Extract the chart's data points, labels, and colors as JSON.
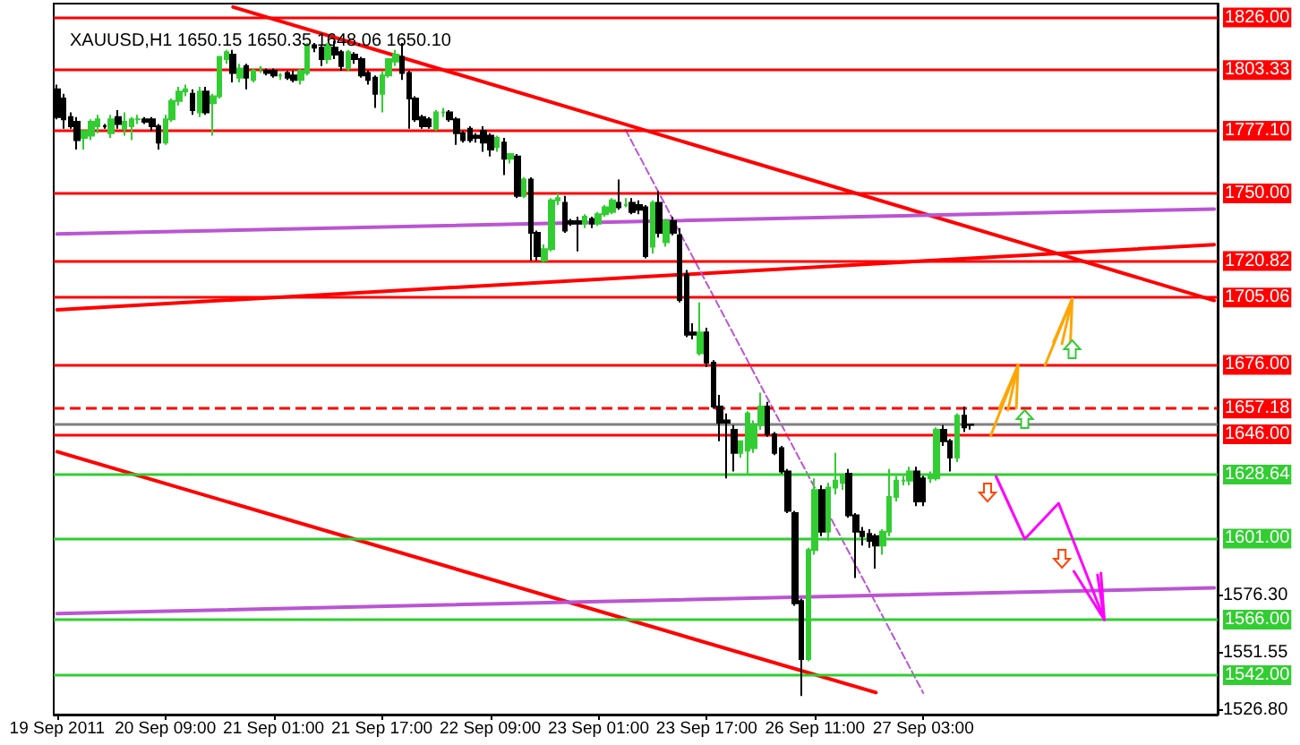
{
  "chart_data": {
    "type": "candlestick",
    "title": "XAUUSD,H1 1650.15 1650.35 1648.06 1650.10",
    "categories": [
      "19 Sep 2011",
      null,
      null,
      null,
      null,
      null,
      null,
      null,
      null,
      null,
      null,
      null,
      null,
      null,
      null,
      null,
      "20 Sep 09:00",
      null,
      null,
      null,
      null,
      null,
      null,
      null,
      null,
      null,
      null,
      null,
      null,
      null,
      null,
      null,
      "21 Sep 01:00",
      null,
      null,
      null,
      null,
      null,
      null,
      null,
      null,
      null,
      null,
      null,
      null,
      null,
      null,
      null,
      "21 Sep 17:00",
      null,
      null,
      null,
      null,
      null,
      null,
      null,
      null,
      null,
      null,
      null,
      null,
      null,
      null,
      null,
      "22 Sep 09:00",
      null,
      null,
      null,
      null,
      null,
      null,
      null,
      null,
      null,
      null,
      null,
      null,
      null,
      null,
      null,
      "23 Sep 01:00",
      null,
      null,
      null,
      null,
      null,
      null,
      null,
      null,
      null,
      null,
      null,
      null,
      null,
      null,
      null,
      "23 Sep 17:00",
      null,
      null,
      null,
      null,
      null,
      null,
      null,
      null,
      null,
      null,
      null,
      null,
      null,
      null,
      null,
      "26 Sep 11:00",
      null,
      null,
      null,
      null,
      null,
      null,
      null,
      null,
      null,
      null,
      null,
      null,
      null,
      null,
      null,
      "27 Sep 03:00",
      null,
      null,
      null,
      null,
      null,
      null,
      null,
      null,
      null,
      null,
      null,
      null,
      null,
      null,
      null,
      null,
      null,
      null,
      null,
      null,
      null,
      null,
      null,
      null,
      null,
      null,
      null,
      null,
      null,
      null,
      null,
      null,
      null,
      null,
      null,
      null,
      null,
      null,
      null,
      null,
      null,
      null,
      null
    ],
    "ohlc": [
      [
        1795,
        1797,
        1782,
        1783
      ],
      [
        1791,
        1793,
        1778,
        1782
      ],
      [
        1783,
        1785,
        1778,
        1779
      ],
      [
        1781,
        1783,
        1769,
        1773
      ],
      [
        1774,
        1777,
        1769,
        1777
      ],
      [
        1775,
        1782,
        1773,
        1781
      ],
      [
        1779,
        1784,
        1776,
        1782
      ],
      [
        1779,
        1780,
        1778,
        1779
      ],
      [
        1776,
        1784,
        1774,
        1782
      ],
      [
        1783,
        1786,
        1778,
        1780
      ],
      [
        1778,
        1785,
        1775,
        1781
      ],
      [
        1779,
        1783,
        1773,
        1782
      ],
      [
        1782,
        1784,
        1780,
        1782
      ],
      [
        1782,
        1783,
        1780,
        1781
      ],
      [
        1782,
        1783,
        1777,
        1779
      ],
      [
        1779,
        1780,
        1769,
        1772
      ],
      [
        1772,
        1784,
        1771,
        1782
      ],
      [
        1782,
        1791,
        1781,
        1790
      ],
      [
        1790,
        1796,
        1788,
        1794
      ],
      [
        1794,
        1797,
        1792,
        1795
      ],
      [
        1793,
        1795,
        1784,
        1786
      ],
      [
        1785,
        1796,
        1783,
        1794
      ],
      [
        1794,
        1796,
        1784,
        1785
      ],
      [
        1789,
        1793,
        1775,
        1792
      ],
      [
        1792,
        1809,
        1791,
        1809
      ],
      [
        1808,
        1812,
        1806,
        1811
      ],
      [
        1810,
        1812,
        1798,
        1802
      ],
      [
        1800,
        1806,
        1798,
        1804
      ],
      [
        1805,
        1806,
        1795,
        1800
      ],
      [
        1799,
        1804,
        1798,
        1803
      ],
      [
        1804,
        1805,
        1802,
        1804
      ],
      [
        1803,
        1804,
        1801,
        1802
      ],
      [
        1803,
        1804,
        1800,
        1801
      ],
      [
        1801,
        1802,
        1799,
        1801
      ],
      [
        1802,
        1803,
        1799,
        1800
      ],
      [
        1801,
        1803,
        1798,
        1799
      ],
      [
        1799,
        1804,
        1797,
        1803
      ],
      [
        1802,
        1815,
        1801,
        1814
      ],
      [
        1814,
        1815,
        1811,
        1813
      ],
      [
        1813,
        1814,
        1805,
        1808
      ],
      [
        1808,
        1815,
        1806,
        1814
      ],
      [
        1813,
        1816,
        1808,
        1810
      ],
      [
        1811,
        1812,
        1803,
        1805
      ],
      [
        1804,
        1812,
        1803,
        1811
      ],
      [
        1810,
        1811,
        1806,
        1808
      ],
      [
        1808,
        1809,
        1800,
        1801
      ],
      [
        1802,
        1803,
        1797,
        1799
      ],
      [
        1800,
        1801,
        1787,
        1793
      ],
      [
        1793,
        1803,
        1785,
        1801
      ],
      [
        1801,
        1808,
        1800,
        1808
      ],
      [
        1807,
        1812,
        1805,
        1810
      ],
      [
        1809,
        1815,
        1799,
        1802
      ],
      [
        1802,
        1803,
        1778,
        1791
      ],
      [
        1791,
        1792,
        1781,
        1782
      ],
      [
        1783,
        1784,
        1778,
        1779
      ],
      [
        1782,
        1783,
        1778,
        1779
      ],
      [
        1778,
        1786,
        1777,
        1785
      ],
      [
        1785,
        1787,
        1783,
        1785
      ],
      [
        1785,
        1786,
        1781,
        1782
      ],
      [
        1782,
        1783,
        1771,
        1776
      ],
      [
        1776,
        1777,
        1772,
        1773
      ],
      [
        1778,
        1779,
        1772,
        1773
      ],
      [
        1775,
        1776,
        1772,
        1774
      ],
      [
        1777,
        1779,
        1768,
        1772
      ],
      [
        1775,
        1776,
        1766,
        1769
      ],
      [
        1770,
        1775,
        1768,
        1774
      ],
      [
        1772,
        1774,
        1758,
        1765
      ],
      [
        1765,
        1767,
        1763,
        1767
      ],
      [
        1766,
        1767,
        1748,
        1749
      ],
      [
        1749,
        1757,
        1748,
        1756
      ],
      [
        1756,
        1757,
        1721,
        1733
      ],
      [
        1733,
        1734,
        1721,
        1723
      ],
      [
        1721,
        1728,
        1720,
        1726
      ],
      [
        1726,
        1748,
        1725,
        1747
      ],
      [
        1747,
        1750,
        1745,
        1748
      ],
      [
        1746,
        1749,
        1733,
        1734
      ],
      [
        1738,
        1739,
        1736,
        1737
      ],
      [
        1738,
        1740,
        1725,
        1737
      ],
      [
        1737,
        1741,
        1735,
        1740
      ],
      [
        1739,
        1740,
        1735,
        1737
      ],
      [
        1737,
        1742,
        1736,
        1741
      ],
      [
        1741,
        1745,
        1740,
        1744
      ],
      [
        1742,
        1748,
        1741,
        1747
      ],
      [
        1746,
        1756,
        1743,
        1744
      ],
      [
        1745,
        1748,
        1744,
        1745
      ],
      [
        1746,
        1748,
        1741,
        1742
      ],
      [
        1745,
        1747,
        1741,
        1743
      ],
      [
        1744,
        1745,
        1722,
        1723
      ],
      [
        1727,
        1747,
        1724,
        1746
      ],
      [
        1746,
        1751,
        1731,
        1733
      ],
      [
        1729,
        1739,
        1727,
        1738
      ],
      [
        1738,
        1740,
        1732,
        1733
      ],
      [
        1732,
        1735,
        1703,
        1704
      ],
      [
        1715,
        1717,
        1688,
        1689
      ],
      [
        1690,
        1694,
        1687,
        1689
      ],
      [
        1681,
        1703,
        1680,
        1690
      ],
      [
        1690,
        1692,
        1675,
        1677
      ],
      [
        1677,
        1678,
        1657,
        1658
      ],
      [
        1658,
        1663,
        1643,
        1651
      ],
      [
        1652,
        1655,
        1627,
        1651
      ],
      [
        1648,
        1650,
        1630,
        1638
      ],
      [
        1638,
        1643,
        1636,
        1643
      ],
      [
        1639,
        1656,
        1629,
        1655
      ],
      [
        1640,
        1652,
        1638,
        1650
      ],
      [
        1650,
        1664,
        1648,
        1658
      ],
      [
        1658,
        1660,
        1645,
        1646
      ],
      [
        1646,
        1647,
        1637,
        1638
      ],
      [
        1640,
        1641,
        1629,
        1630
      ],
      [
        1630,
        1631,
        1612,
        1613
      ],
      [
        1612,
        1613,
        1572,
        1573
      ],
      [
        1574,
        1575,
        1533,
        1549
      ],
      [
        1549,
        1597,
        1548,
        1596
      ],
      [
        1596,
        1627,
        1594,
        1622
      ],
      [
        1622,
        1624,
        1602,
        1604
      ],
      [
        1604,
        1625,
        1600,
        1623
      ],
      [
        1623,
        1638,
        1620,
        1626
      ],
      [
        1625,
        1629,
        1622,
        1628
      ],
      [
        1629,
        1631,
        1610,
        1611
      ],
      [
        1611,
        1612,
        1584,
        1604
      ],
      [
        1604,
        1606,
        1598,
        1602
      ],
      [
        1603,
        1605,
        1597,
        1600
      ],
      [
        1602,
        1603,
        1588,
        1598
      ],
      [
        1598,
        1605,
        1594,
        1604
      ],
      [
        1604,
        1631,
        1602,
        1619
      ],
      [
        1619,
        1628,
        1617,
        1626
      ],
      [
        1626,
        1628,
        1624,
        1626
      ],
      [
        1626,
        1632,
        1624,
        1630
      ],
      [
        1630,
        1632,
        1615,
        1617
      ],
      [
        1627,
        1628,
        1615,
        1617
      ],
      [
        1627,
        1630,
        1625,
        1628
      ],
      [
        1627,
        1649,
        1626,
        1648
      ],
      [
        1648,
        1650,
        1641,
        1643
      ],
      [
        1643,
        1644,
        1630,
        1636
      ],
      [
        1636,
        1655,
        1634,
        1654
      ],
      [
        1654,
        1658,
        1647,
        1649
      ],
      [
        1650.15,
        1650.35,
        1648.06,
        1650.1
      ],
      null,
      null,
      null,
      null,
      null,
      null,
      null,
      null,
      null,
      null,
      null,
      null,
      null,
      null,
      null,
      null,
      null,
      null,
      null,
      null,
      null,
      null,
      null,
      null,
      null,
      null,
      null,
      null,
      null,
      null,
      null,
      null,
      null,
      null,
      null,
      null
    ],
    "series": [
      {
        "type": "line",
        "color": "#ff0000",
        "values": [
          null,
          null,
          null,
          null,
          null,
          null,
          null,
          null,
          null,
          null,
          null,
          null,
          null,
          null,
          null,
          null,
          null,
          null,
          null,
          null,
          null,
          null,
          null,
          null,
          null,
          null,
          1830.5,
          null,
          null,
          null,
          null,
          null,
          null,
          null,
          null,
          null,
          null,
          null,
          null,
          null,
          null,
          null,
          null,
          null,
          null,
          null,
          null,
          null,
          null,
          null,
          null,
          null,
          null,
          null,
          null,
          null,
          null,
          null,
          null,
          null,
          null,
          null,
          null,
          null,
          null,
          null,
          null,
          null,
          null,
          null,
          null,
          null,
          null,
          null,
          null,
          null,
          null,
          null,
          null,
          null,
          null,
          null,
          null,
          null,
          null,
          null,
          null,
          null,
          null,
          null,
          null,
          null,
          null,
          null,
          null,
          null,
          null,
          null,
          null,
          null,
          null,
          null,
          null,
          null,
          null,
          null,
          null,
          null,
          null,
          null,
          null,
          null,
          null,
          null,
          null,
          null,
          null,
          null,
          null,
          null,
          null,
          null,
          null,
          null,
          null,
          null,
          null,
          null,
          null,
          null,
          null,
          null,
          null,
          null,
          null,
          null,
          null,
          null,
          null,
          null,
          null,
          null,
          null,
          null,
          null,
          null,
          null,
          null,
          null,
          null,
          null,
          null,
          null,
          null,
          null,
          null,
          null,
          null,
          null,
          null,
          null,
          null,
          null,
          null,
          null,
          null,
          null,
          null,
          null,
          null,
          null,
          1703.8
        ]
      },
      {
        "type": "line",
        "color": "#ff0000",
        "values": [
          1699.8,
          null,
          null,
          null,
          null,
          null,
          null,
          null,
          null,
          null,
          null,
          null,
          null,
          null,
          null,
          null,
          null,
          null,
          null,
          null,
          null,
          null,
          null,
          null,
          null,
          null,
          null,
          null,
          null,
          null,
          null,
          null,
          null,
          null,
          null,
          null,
          null,
          null,
          null,
          null,
          null,
          null,
          null,
          null,
          null,
          null,
          null,
          null,
          null,
          null,
          null,
          null,
          null,
          null,
          null,
          null,
          null,
          null,
          null,
          null,
          null,
          null,
          null,
          null,
          null,
          null,
          null,
          null,
          null,
          null,
          null,
          null,
          null,
          null,
          null,
          null,
          null,
          null,
          null,
          null,
          null,
          null,
          null,
          null,
          null,
          null,
          null,
          null,
          null,
          null,
          null,
          null,
          null,
          null,
          null,
          null,
          null,
          null,
          null,
          null,
          null,
          null,
          null,
          null,
          null,
          null,
          null,
          null,
          null,
          null,
          null,
          null,
          null,
          null,
          null,
          null,
          null,
          null,
          null,
          null,
          null,
          null,
          null,
          null,
          null,
          null,
          null,
          null,
          null,
          null,
          null,
          null,
          null,
          null,
          null,
          null,
          null,
          null,
          null,
          null,
          null,
          null,
          null,
          null,
          null,
          null,
          null,
          null,
          null,
          null,
          null,
          null,
          null,
          null,
          null,
          null,
          null,
          null,
          null,
          null,
          null,
          null,
          null,
          null,
          null,
          null,
          null,
          null,
          null,
          null,
          null,
          1727.9
        ]
      },
      {
        "type": "line",
        "color": "#ff0000",
        "values": [
          1638.5,
          null,
          null,
          null,
          null,
          null,
          null,
          null,
          null,
          null,
          null,
          null,
          null,
          null,
          null,
          null,
          null,
          null,
          null,
          null,
          null,
          null,
          null,
          null,
          null,
          null,
          null,
          null,
          null,
          null,
          null,
          null,
          null,
          null,
          null,
          null,
          null,
          null,
          null,
          null,
          null,
          null,
          null,
          null,
          null,
          null,
          null,
          null,
          null,
          null,
          null,
          null,
          null,
          null,
          null,
          null,
          null,
          null,
          null,
          null,
          null,
          null,
          null,
          null,
          null,
          null,
          null,
          null,
          null,
          null,
          null,
          null,
          null,
          null,
          null,
          null,
          null,
          null,
          null,
          null,
          null,
          null,
          null,
          null,
          null,
          null,
          null,
          null,
          null,
          null,
          null,
          null,
          null,
          null,
          null,
          null,
          null,
          null,
          null,
          null,
          null,
          null,
          null,
          null,
          null,
          null,
          null,
          null,
          null,
          null,
          null,
          null,
          null,
          null,
          null,
          null,
          null,
          null,
          null,
          null,
          null,
          1534.5,
          null,
          null,
          null,
          null,
          null,
          null,
          null,
          null,
          null,
          null,
          null,
          null,
          null,
          null,
          null,
          null,
          null,
          null,
          null,
          null,
          null,
          null,
          null,
          null,
          null,
          null,
          null,
          null,
          null,
          null,
          null,
          null,
          null,
          null,
          null,
          null,
          null,
          null,
          null,
          null,
          null,
          null,
          null,
          null,
          null,
          null,
          null,
          null,
          null,
          null
        ]
      },
      {
        "type": "line",
        "color": "#ba55d3",
        "values": [
          1732.5,
          null,
          null,
          null,
          null,
          null,
          null,
          null,
          null,
          null,
          null,
          null,
          null,
          null,
          null,
          null,
          null,
          null,
          null,
          null,
          null,
          null,
          null,
          null,
          null,
          null,
          null,
          null,
          null,
          null,
          null,
          null,
          null,
          null,
          null,
          null,
          null,
          null,
          null,
          null,
          null,
          null,
          null,
          null,
          null,
          null,
          null,
          null,
          null,
          null,
          null,
          null,
          null,
          null,
          null,
          null,
          null,
          null,
          null,
          null,
          null,
          null,
          null,
          null,
          null,
          null,
          null,
          null,
          null,
          null,
          null,
          null,
          null,
          null,
          null,
          null,
          null,
          null,
          null,
          null,
          null,
          null,
          null,
          null,
          null,
          null,
          null,
          null,
          null,
          null,
          null,
          null,
          null,
          null,
          null,
          null,
          null,
          null,
          null,
          null,
          null,
          null,
          null,
          null,
          null,
          null,
          null,
          null,
          null,
          null,
          null,
          null,
          null,
          null,
          null,
          null,
          null,
          null,
          null,
          null,
          null,
          null,
          null,
          null,
          null,
          null,
          null,
          null,
          null,
          null,
          null,
          null,
          null,
          null,
          null,
          null,
          null,
          null,
          null,
          null,
          null,
          null,
          null,
          null,
          null,
          null,
          null,
          null,
          null,
          null,
          null,
          null,
          null,
          null,
          null,
          null,
          null,
          null,
          null,
          null,
          null,
          null,
          null,
          null,
          null,
          null,
          null,
          null,
          null,
          null,
          null,
          1743.3
        ]
      },
      {
        "type": "line",
        "color": "#ba55d3",
        "values": [
          1568.6,
          null,
          null,
          null,
          null,
          null,
          null,
          null,
          null,
          null,
          null,
          null,
          null,
          null,
          null,
          null,
          null,
          null,
          null,
          null,
          null,
          null,
          null,
          null,
          null,
          null,
          null,
          null,
          null,
          null,
          null,
          null,
          null,
          null,
          null,
          null,
          null,
          null,
          null,
          null,
          null,
          null,
          null,
          null,
          null,
          null,
          null,
          null,
          null,
          null,
          null,
          null,
          null,
          null,
          null,
          null,
          null,
          null,
          null,
          null,
          null,
          null,
          null,
          null,
          null,
          null,
          null,
          null,
          null,
          null,
          null,
          null,
          null,
          null,
          null,
          null,
          null,
          null,
          null,
          null,
          null,
          null,
          null,
          null,
          null,
          null,
          null,
          null,
          null,
          null,
          null,
          null,
          null,
          null,
          null,
          null,
          null,
          null,
          null,
          null,
          null,
          null,
          null,
          null,
          null,
          null,
          null,
          null,
          null,
          null,
          null,
          null,
          null,
          null,
          null,
          null,
          null,
          null,
          null,
          null,
          null,
          null,
          null,
          null,
          null,
          null,
          null,
          null,
          null,
          null,
          null,
          null,
          null,
          null,
          null,
          null,
          null,
          null,
          null,
          null,
          null,
          null,
          null,
          null,
          null,
          null,
          null,
          null,
          null,
          null,
          null,
          null,
          null,
          null,
          null,
          null,
          null,
          null,
          null,
          null,
          null,
          null,
          null,
          null,
          null,
          null,
          null,
          null,
          null,
          null,
          null,
          1579.7
        ]
      },
      {
        "type": "line",
        "color": "#ba55d3",
        "line_style": "dashed",
        "values": [
          null,
          null,
          null,
          null,
          null,
          null,
          null,
          null,
          null,
          null,
          null,
          null,
          null,
          null,
          null,
          null,
          null,
          null,
          null,
          null,
          null,
          null,
          null,
          null,
          null,
          null,
          null,
          null,
          null,
          null,
          null,
          null,
          null,
          null,
          null,
          null,
          null,
          null,
          null,
          null,
          null,
          null,
          null,
          null,
          null,
          null,
          null,
          null,
          null,
          null,
          null,
          null,
          null,
          null,
          null,
          null,
          null,
          null,
          null,
          null,
          null,
          null,
          null,
          null,
          null,
          null,
          null,
          null,
          null,
          null,
          null,
          null,
          null,
          null,
          null,
          null,
          null,
          null,
          null,
          null,
          null,
          null,
          null,
          null,
          1777.5,
          null,
          null,
          null,
          null,
          null,
          null,
          null,
          null,
          null,
          null,
          null,
          null,
          null,
          null,
          null,
          null,
          null,
          null,
          null,
          null,
          null,
          null,
          null,
          null,
          null,
          null,
          null,
          null,
          null,
          null,
          null,
          null,
          null,
          null,
          null,
          null,
          null,
          null,
          null,
          null,
          null,
          null,
          null,
          1534.3,
          null,
          null,
          null,
          null,
          null,
          null,
          null,
          null,
          null,
          null,
          null,
          null,
          null,
          null,
          null,
          null,
          null,
          null,
          null,
          null,
          null,
          null,
          null,
          null,
          null,
          null,
          null,
          null,
          null,
          null,
          null,
          null,
          null,
          null,
          null,
          null,
          null,
          null,
          null,
          null,
          null,
          null,
          null
        ]
      }
    ],
    "ref_lines": [
      {
        "axis": "y",
        "value": 1826,
        "label": "1826.00",
        "color": "#ff0000"
      },
      {
        "axis": "y",
        "value": 1803.33,
        "label": "1803.33",
        "color": "#ff0000"
      },
      {
        "axis": "y",
        "value": 1777.1,
        "label": "1777.10",
        "color": "#ff0000"
      },
      {
        "axis": "y",
        "value": 1750,
        "label": "1750.00",
        "color": "#ff0000"
      },
      {
        "axis": "y",
        "value": 1720.82,
        "label": "1720.82",
        "color": "#ff0000"
      },
      {
        "axis": "y",
        "value": 1705.06,
        "label": "1705.06",
        "color": "#ff0000"
      },
      {
        "axis": "y",
        "value": 1676,
        "label": "1676.00",
        "color": "#ff0000"
      },
      {
        "axis": "y",
        "value": 1657.18,
        "label": "1657.18",
        "color": "#ff0000",
        "line_style": "dashed"
      },
      {
        "axis": "y",
        "value": 1650.1,
        "color": "#808080"
      },
      {
        "axis": "y",
        "value": 1646,
        "label": "1646.00",
        "color": "#ff0000"
      },
      {
        "axis": "y",
        "value": 1628.64,
        "label": "1628.64",
        "color": "#32cd32"
      },
      {
        "axis": "y",
        "value": 1601,
        "label": "1601.00",
        "color": "#32cd32"
      },
      {
        "axis": "y",
        "value": 1566,
        "label": "1566.00",
        "color": "#32cd32"
      },
      {
        "axis": "y",
        "value": 1542,
        "label": "1542.00",
        "color": "#32cd32"
      }
    ],
    "ylim": [
      1525,
      1832
    ],
    "yticks": [
      {
        "value": 1526.8,
        "label": "1526.80"
      },
      {
        "value": 1551.55,
        "label": "1551.55"
      },
      {
        "value": 1576.3,
        "label": "1576.30"
      }
    ],
    "marker": "none"
  }
}
